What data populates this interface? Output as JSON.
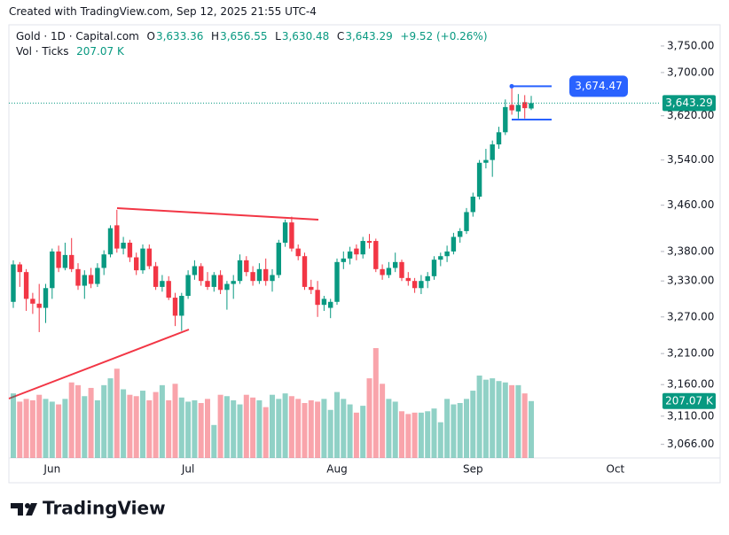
{
  "header": {
    "created": "Created with TradingView.com, Sep 12, 2025 21:55 UTC-4"
  },
  "legend": {
    "o": "O",
    "open": "3,633.36",
    "h": "H",
    "high": "3,656.55",
    "l": "L",
    "low": "3,630.48",
    "c": "C",
    "close": "3,643.29",
    "change": "+9.52 (+0.26%)",
    "volume_name": "Vol · Ticks",
    "volume": "207.07 K"
  },
  "footer": {
    "logo": "TradingView"
  },
  "chart_data": {
    "type": "candlestick",
    "title": "Gold · 1D · Capital.com",
    "log_scale": true,
    "grid": false,
    "up_color": "#089981",
    "down_color": "#f23645",
    "categories": [
      null,
      null,
      null,
      null,
      null,
      null,
      "Jun",
      null,
      null,
      null,
      null,
      null,
      null,
      null,
      null,
      null,
      null,
      null,
      null,
      null,
      null,
      null,
      null,
      null,
      null,
      null,
      null,
      "Jul",
      null,
      null,
      null,
      null,
      null,
      null,
      null,
      null,
      null,
      null,
      null,
      null,
      null,
      null,
      null,
      null,
      null,
      null,
      null,
      null,
      null,
      null,
      "Aug",
      null,
      null,
      null,
      null,
      null,
      null,
      null,
      null,
      null,
      null,
      null,
      null,
      null,
      null,
      null,
      null,
      null,
      null,
      null,
      null,
      "Sep",
      null,
      null,
      null,
      null,
      null,
      null,
      null,
      null,
      null,
      null,
      null,
      null,
      null,
      null,
      null,
      null,
      null,
      null,
      null,
      null,
      null,
      "Oct"
    ],
    "open": [
      3295,
      3358,
      3345,
      3300,
      3292,
      3285,
      3318,
      3380,
      3352,
      3374,
      3350,
      3322,
      3340,
      3325,
      3352,
      3375,
      3425,
      3385,
      3395,
      3370,
      3348,
      3385,
      3355,
      3320,
      3330,
      3302,
      3272,
      3305,
      3340,
      3355,
      3330,
      3320,
      3340,
      3315,
      3325,
      3330,
      3365,
      3345,
      3330,
      3350,
      3330,
      3340,
      3395,
      3430,
      3385,
      3372,
      3320,
      3315,
      3290,
      3285,
      3295,
      3362,
      3368,
      3385,
      3375,
      3398,
      3398,
      3350,
      3340,
      3352,
      3362,
      3335,
      3330,
      3318,
      3330,
      3338,
      3366,
      3372,
      3380,
      3405,
      3415,
      3448,
      3475,
      3535,
      3540,
      3568,
      3590,
      3640,
      3628,
      3645,
      3633.36,
      null,
      null,
      null,
      null,
      null,
      null,
      null,
      null,
      null,
      null,
      null,
      null,
      null
    ],
    "high": [
      3365,
      3362,
      3350,
      3310,
      3325,
      3325,
      3385,
      3390,
      3395,
      3403,
      3360,
      3348,
      3352,
      3360,
      3382,
      3425,
      3452,
      3405,
      3400,
      3378,
      3392,
      3392,
      3362,
      3340,
      3338,
      3310,
      3310,
      3348,
      3365,
      3360,
      3345,
      3345,
      3348,
      3330,
      3340,
      3375,
      3372,
      3355,
      3360,
      3368,
      3350,
      3400,
      3435,
      3440,
      3392,
      3378,
      3332,
      3330,
      3305,
      3300,
      3368,
      3380,
      3388,
      3392,
      3405,
      3410,
      3402,
      3358,
      3362,
      3378,
      3366,
      3345,
      3335,
      3340,
      3345,
      3372,
      3378,
      3390,
      3412,
      3420,
      3455,
      3482,
      3540,
      3560,
      3575,
      3600,
      3650,
      3674.47,
      3660,
      3658,
      3656.55,
      null,
      null,
      null,
      null,
      null,
      null,
      null,
      null,
      null,
      null,
      null,
      null,
      null
    ],
    "low": [
      3285,
      3320,
      3280,
      3275,
      3245,
      3260,
      3300,
      3345,
      3348,
      3345,
      3315,
      3300,
      3318,
      3320,
      3340,
      3370,
      3378,
      3375,
      3362,
      3340,
      3342,
      3350,
      3315,
      3312,
      3298,
      3255,
      3247,
      3300,
      3332,
      3322,
      3315,
      3312,
      3308,
      3282,
      3300,
      3325,
      3338,
      3322,
      3325,
      3322,
      3312,
      3335,
      3388,
      3380,
      3365,
      3315,
      3308,
      3270,
      3280,
      3268,
      3290,
      3350,
      3358,
      3365,
      3368,
      3385,
      3345,
      3332,
      3335,
      3345,
      3330,
      3322,
      3310,
      3308,
      3318,
      3332,
      3355,
      3362,
      3375,
      3395,
      3410,
      3440,
      3470,
      3525,
      3510,
      3560,
      3585,
      3622,
      3615,
      3615,
      3630.48,
      null,
      null,
      null,
      null,
      null,
      null,
      null,
      null,
      null,
      null,
      null,
      null,
      null
    ],
    "close": [
      3358,
      3345,
      3300,
      3292,
      3285,
      3318,
      3380,
      3352,
      3374,
      3350,
      3322,
      3340,
      3325,
      3352,
      3375,
      3420,
      3385,
      3395,
      3370,
      3348,
      3385,
      3355,
      3320,
      3330,
      3302,
      3272,
      3305,
      3340,
      3355,
      3330,
      3320,
      3340,
      3315,
      3325,
      3330,
      3365,
      3345,
      3330,
      3350,
      3330,
      3340,
      3395,
      3430,
      3385,
      3372,
      3320,
      3315,
      3290,
      3300,
      3295,
      3362,
      3368,
      3380,
      3375,
      3398,
      3395,
      3350,
      3340,
      3352,
      3362,
      3335,
      3330,
      3318,
      3330,
      3338,
      3366,
      3372,
      3380,
      3405,
      3415,
      3448,
      3475,
      3535,
      3540,
      3568,
      3590,
      3636,
      3630,
      3640,
      3634,
      3643.29,
      null,
      null,
      null,
      null,
      null,
      null,
      null,
      null,
      null,
      null,
      null,
      null,
      null
    ],
    "volume": {
      "name": "Vol · Ticks",
      "values": [
        235000,
        205000,
        215000,
        210000,
        230000,
        215000,
        205000,
        195000,
        215000,
        275000,
        265000,
        225000,
        255000,
        210000,
        265000,
        290000,
        325000,
        250000,
        230000,
        225000,
        245000,
        210000,
        240000,
        265000,
        210000,
        270000,
        220000,
        205000,
        210000,
        200000,
        215000,
        120000,
        230000,
        225000,
        210000,
        195000,
        230000,
        220000,
        210000,
        185000,
        230000,
        215000,
        235000,
        225000,
        215000,
        200000,
        210000,
        205000,
        215000,
        175000,
        240000,
        215000,
        195000,
        165000,
        190000,
        290000,
        400000,
        270000,
        215000,
        205000,
        170000,
        160000,
        165000,
        165000,
        170000,
        180000,
        130000,
        215000,
        195000,
        200000,
        215000,
        245000,
        300000,
        285000,
        290000,
        280000,
        275000,
        265000,
        265000,
        235000,
        207070,
        null,
        null,
        null,
        null,
        null,
        null,
        null,
        null,
        null,
        null,
        null,
        null,
        null
      ],
      "last_label": {
        "value": 207070,
        "label": "207.07 K"
      }
    },
    "ylim": [
      3045,
      3787
    ],
    "yticks": [
      {
        "value": 3066,
        "label": "3,066.00"
      },
      {
        "value": 3110,
        "label": "3,110.00"
      },
      {
        "value": 3160,
        "label": "3,160.00"
      },
      {
        "value": 3210,
        "label": "3,210.00"
      },
      {
        "value": 3270,
        "label": "3,270.00"
      },
      {
        "value": 3330,
        "label": "3,330.00"
      },
      {
        "value": 3380,
        "label": "3,380.00"
      },
      {
        "value": 3460,
        "label": "3,460.00"
      },
      {
        "value": 3540,
        "label": "3,540.00"
      },
      {
        "value": 3620,
        "label": "3,620.00"
      },
      {
        "value": 3700,
        "label": "3,700.00"
      },
      {
        "value": 3750,
        "label": "3,750.00"
      }
    ],
    "last_price": {
      "value": 3643.29,
      "label": "3,643.29"
    },
    "annotations": [
      {
        "value": 3674.47,
        "label": "3,674.47"
      }
    ]
  }
}
